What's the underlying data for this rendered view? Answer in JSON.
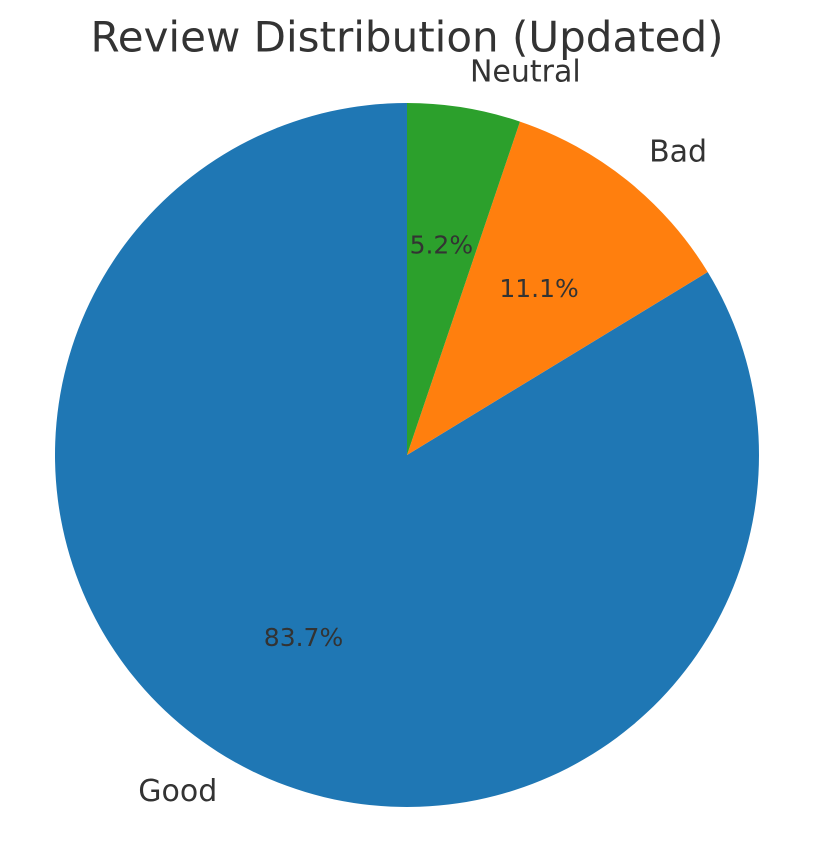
{
  "chart_data": {
    "type": "pie",
    "title": "Review Distribution (Updated)",
    "categories": [
      "Good",
      "Bad",
      "Neutral"
    ],
    "values": [
      83.7,
      11.1,
      5.2
    ],
    "value_labels": [
      "83.7%",
      "11.1%",
      "5.2%"
    ],
    "colors": [
      "#1f77b4",
      "#ff7f0e",
      "#2ca02c"
    ]
  }
}
